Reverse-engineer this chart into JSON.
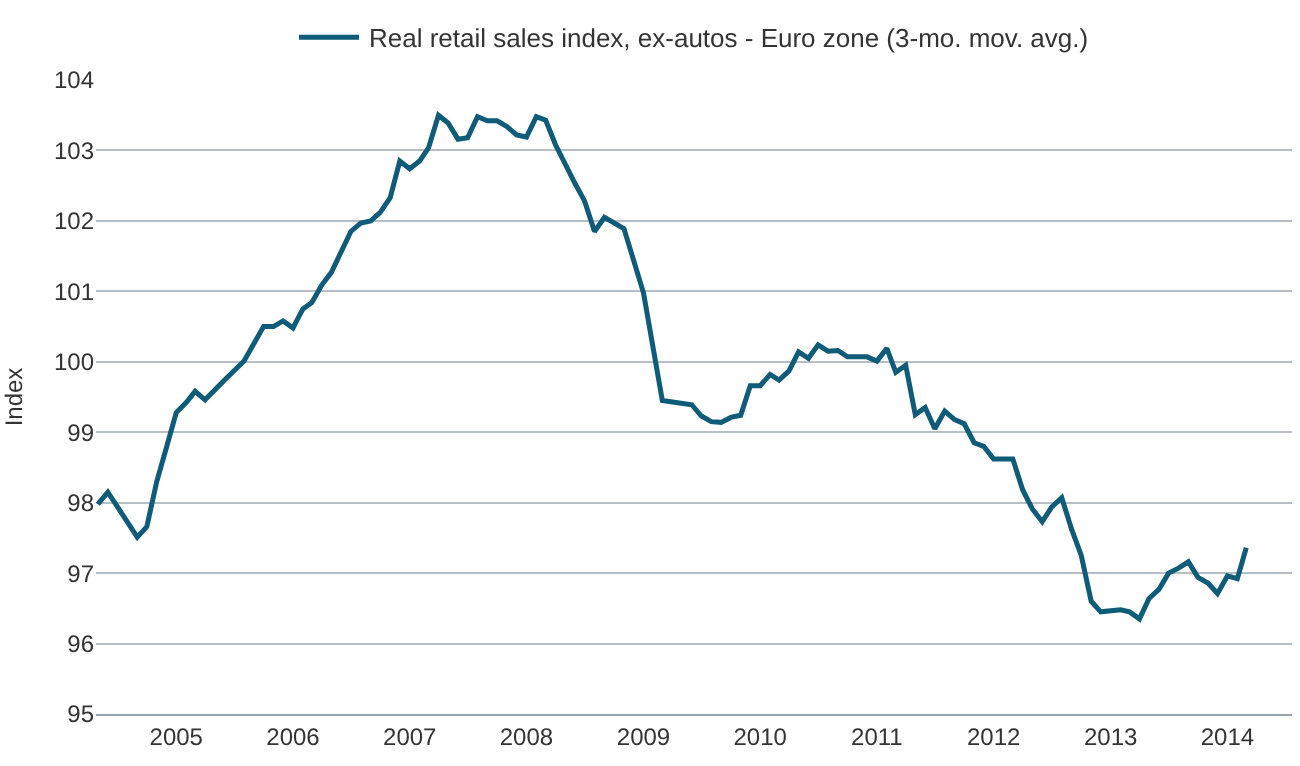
{
  "chart_data": {
    "type": "line",
    "ylabel": "Index",
    "x": [
      "2004-05",
      "2004-06",
      "2004-09",
      "2004-10",
      "2004-11",
      "2004-12",
      "2005-01",
      "2005-02",
      "2005-03",
      "2005-04",
      "2005-06",
      "2005-08",
      "2005-10",
      "2005-11",
      "2005-12",
      "2006-01",
      "2006-02",
      "2006-03",
      "2006-04",
      "2006-05",
      "2006-07",
      "2006-08",
      "2006-09",
      "2006-10",
      "2006-11",
      "2006-12",
      "2007-01",
      "2007-02",
      "2007-03",
      "2007-04",
      "2007-05",
      "2007-06",
      "2007-07",
      "2007-08",
      "2007-09",
      "2007-10",
      "2007-11",
      "2007-12",
      "2008-01",
      "2008-02",
      "2008-03",
      "2008-04",
      "2008-06",
      "2008-07",
      "2008-08",
      "2008-09",
      "2008-11",
      "2009-01",
      "2009-03",
      "2009-06",
      "2009-07",
      "2009-08",
      "2009-09",
      "2009-10",
      "2009-11",
      "2009-12",
      "2010-01",
      "2010-02",
      "2010-03",
      "2010-04",
      "2010-05",
      "2010-06",
      "2010-07",
      "2010-08",
      "2010-09",
      "2010-10",
      "2010-12",
      "2011-01",
      "2011-02",
      "2011-03",
      "2011-04",
      "2011-05",
      "2011-06",
      "2011-07",
      "2011-08",
      "2011-09",
      "2011-10",
      "2011-11",
      "2011-12",
      "2012-01",
      "2012-03",
      "2012-04",
      "2012-05",
      "2012-06",
      "2012-07",
      "2012-08",
      "2012-09",
      "2012-10",
      "2012-11",
      "2012-12",
      "2013-02",
      "2013-03",
      "2013-04",
      "2013-05",
      "2013-06",
      "2013-07",
      "2013-08",
      "2013-09",
      "2013-10",
      "2013-11",
      "2013-12",
      "2014-01",
      "2014-02",
      "2014-03"
    ],
    "series": [
      {
        "name": "Real retail sales index, ex-autos - Euro zone (3-mo. mov. avg.)",
        "color": "#0f5b78",
        "values": [
          97.98,
          98.15,
          97.51,
          97.66,
          98.3,
          98.78,
          99.28,
          99.42,
          99.58,
          99.46,
          99.74,
          100.01,
          100.5,
          100.5,
          100.58,
          100.48,
          100.75,
          100.84,
          101.09,
          101.27,
          101.85,
          101.97,
          102.0,
          102.12,
          102.33,
          102.85,
          102.74,
          102.85,
          103.04,
          103.5,
          103.39,
          103.16,
          103.18,
          103.48,
          103.42,
          103.42,
          103.34,
          103.22,
          103.19,
          103.48,
          103.43,
          103.08,
          102.53,
          102.28,
          101.85,
          102.05,
          101.89,
          100.98,
          99.45,
          99.39,
          99.23,
          99.15,
          99.14,
          99.21,
          99.24,
          99.66,
          99.66,
          99.82,
          99.74,
          99.87,
          100.14,
          100.05,
          100.24,
          100.15,
          100.16,
          100.07,
          100.07,
          100.01,
          100.19,
          99.85,
          99.95,
          99.25,
          99.35,
          99.05,
          99.3,
          99.18,
          99.12,
          98.85,
          98.8,
          98.62,
          98.62,
          98.18,
          97.91,
          97.73,
          97.94,
          98.07,
          97.62,
          97.25,
          96.6,
          96.45,
          96.48,
          96.45,
          96.35,
          96.64,
          96.77,
          97.0,
          97.07,
          97.16,
          96.94,
          96.86,
          96.71,
          96.96,
          96.92,
          97.36
        ]
      }
    ],
    "xlim": [
      "2004-04-25",
      "2014-07-22"
    ],
    "xticks": [
      {
        "value": "2005-01",
        "label": "2005"
      },
      {
        "value": "2006-01",
        "label": "2006"
      },
      {
        "value": "2007-01",
        "label": "2007"
      },
      {
        "value": "2008-01",
        "label": "2008"
      },
      {
        "value": "2009-01",
        "label": "2009"
      },
      {
        "value": "2010-01",
        "label": "2010"
      },
      {
        "value": "2011-01",
        "label": "2011"
      },
      {
        "value": "2012-01",
        "label": "2012"
      },
      {
        "value": "2013-01",
        "label": "2013"
      },
      {
        "value": "2014-01",
        "label": "2014"
      }
    ],
    "ylim": [
      95,
      104
    ],
    "yticks": [
      95,
      96,
      97,
      98,
      99,
      100,
      101,
      102,
      103,
      104
    ],
    "grid": "y",
    "legend": "top",
    "marker": "none",
    "line_style": "solid"
  }
}
